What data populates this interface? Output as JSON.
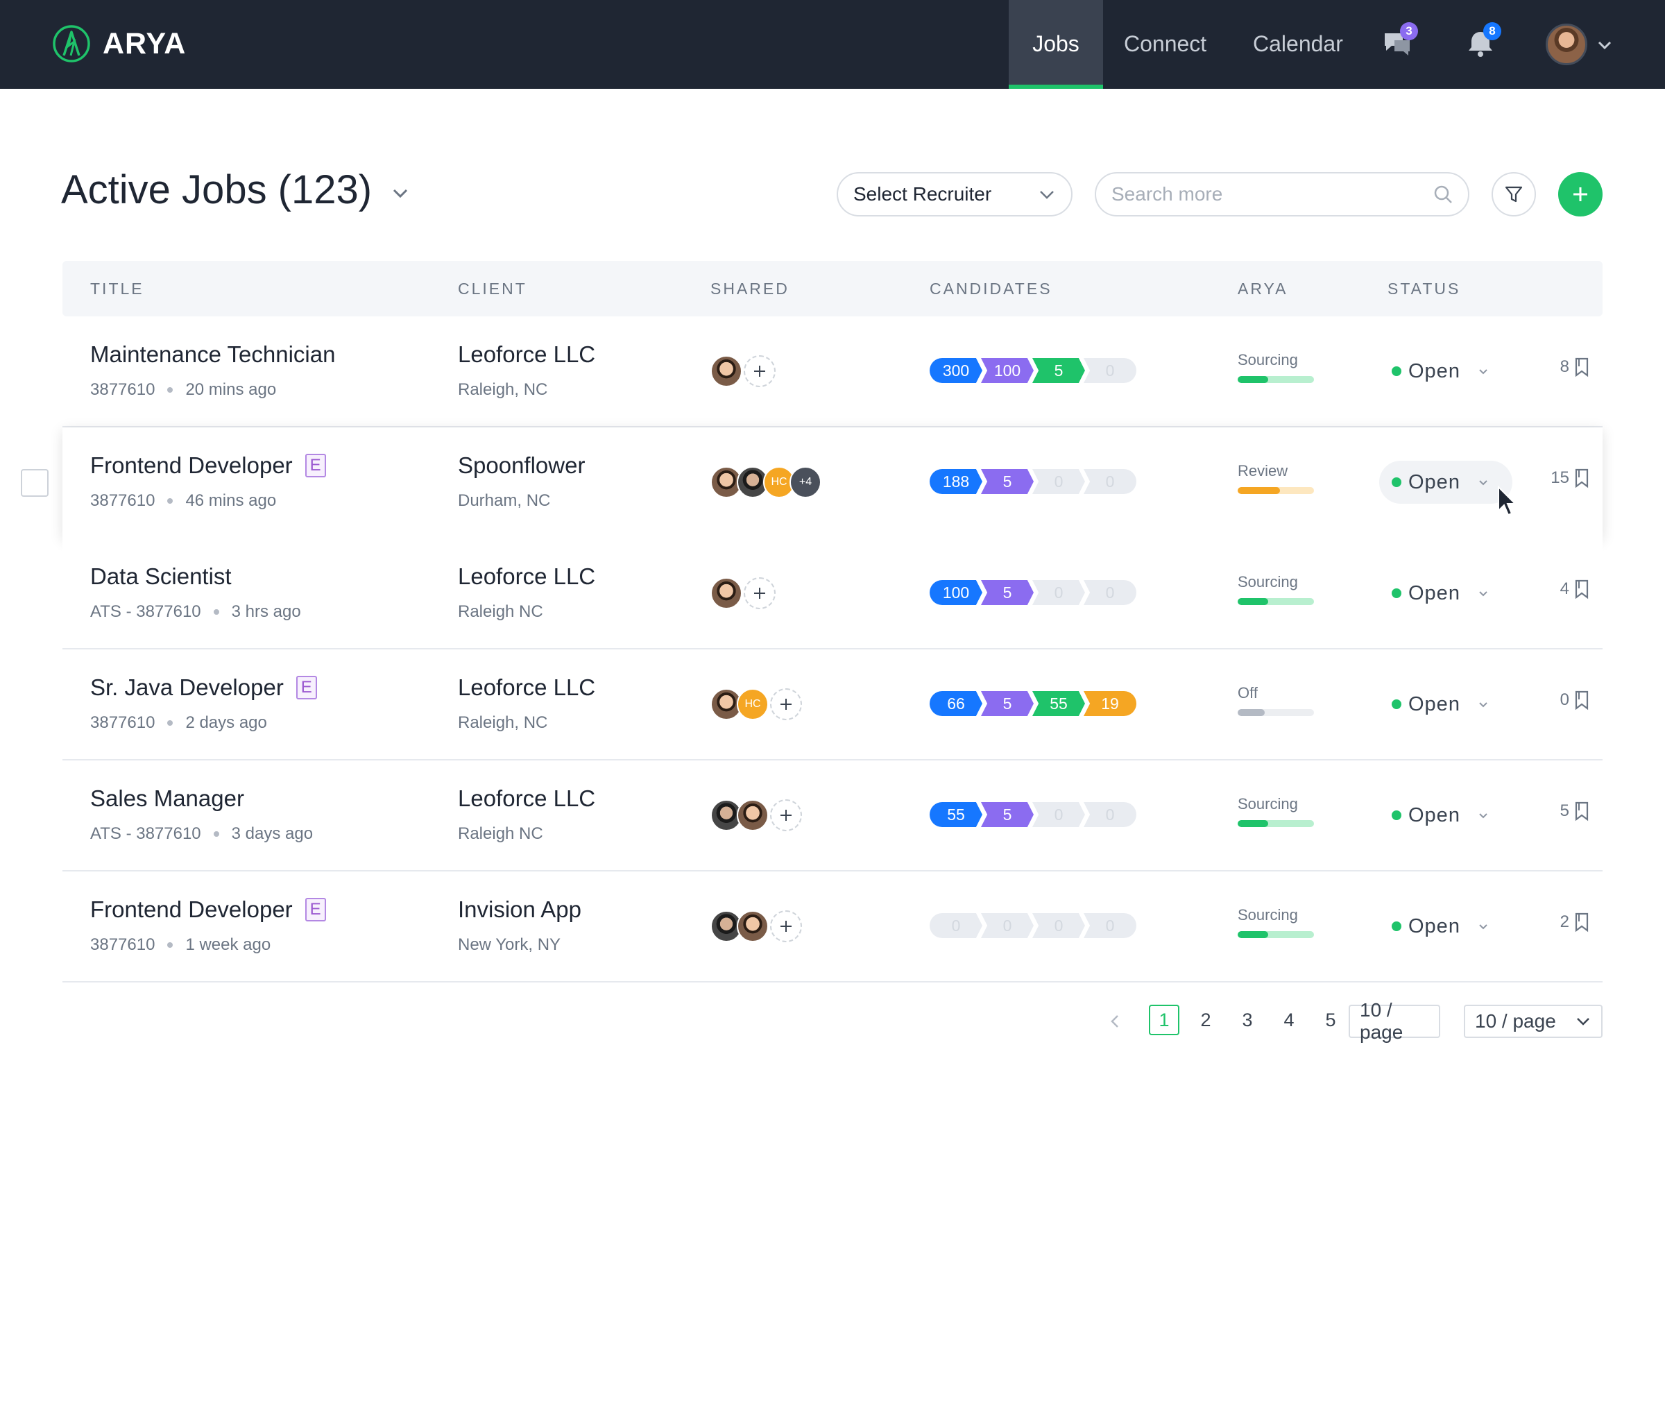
{
  "brand": {
    "name": "ARYA",
    "accent": "#1fc36a"
  },
  "nav": {
    "items": [
      {
        "label": "Jobs",
        "active": true
      },
      {
        "label": "Connect",
        "active": false
      },
      {
        "label": "Calendar",
        "active": false
      }
    ],
    "messages_badge": "3",
    "notifications_badge": "8",
    "messages_icon": "chat-icon",
    "notifications_icon": "bell-icon"
  },
  "header": {
    "title": "Active Jobs (123)",
    "recruiter_select": "Select Recruiter",
    "search_placeholder": "Search more"
  },
  "table": {
    "columns": [
      "TITLE",
      "CLIENT",
      "SHARED",
      "CANDIDATES",
      "ARYA",
      "STATUS"
    ],
    "rows": [
      {
        "title": "Maintenance Technician",
        "e": false,
        "id": "3877610",
        "time": "20 mins ago",
        "client": "Leoforce LLC",
        "location": "Raleigh, NC",
        "candidates": [
          "300",
          "100",
          "5",
          "0"
        ],
        "arya": "Sourcing",
        "arya_level": 0.4,
        "arya_color": "#1fc36a",
        "arya_track": "#b8efcf",
        "status": "Open",
        "bookmarks": "8"
      },
      {
        "title": "Frontend Developer",
        "e": true,
        "id": "3877610",
        "time": "46 mins ago",
        "client": "Spoonflower",
        "location": "Durham, NC",
        "candidates": [
          "188",
          "5",
          "0",
          "0"
        ],
        "arya": "Review",
        "arya_level": 0.55,
        "arya_color": "#f5a623",
        "arya_track": "#fde7bf",
        "status": "Open",
        "bookmarks": "15"
      },
      {
        "title": "Data Scientist",
        "e": false,
        "id": "ATS - 3877610",
        "time": "3 hrs ago",
        "client": "Leoforce LLC",
        "location": "Raleigh NC",
        "candidates": [
          "100",
          "5",
          "0",
          "0"
        ],
        "arya": "Sourcing",
        "arya_level": 0.4,
        "arya_color": "#1fc36a",
        "arya_track": "#b8efcf",
        "status": "Open",
        "bookmarks": "4"
      },
      {
        "title": "Sr. Java Developer",
        "e": true,
        "id": "3877610",
        "time": "2 days ago",
        "client": "Leoforce LLC",
        "location": "Raleigh, NC",
        "candidates": [
          "66",
          "5",
          "55",
          "19"
        ],
        "arya": "Off",
        "arya_level": 0.35,
        "arya_color": "#b4bac4",
        "arya_track": "#eceef1",
        "status": "Open",
        "bookmarks": "0"
      },
      {
        "title": "Sales Manager",
        "e": false,
        "id": "ATS - 3877610",
        "time": "3 days ago",
        "client": "Leoforce LLC",
        "location": "Raleigh NC",
        "candidates": [
          "55",
          "5",
          "0",
          "0"
        ],
        "arya": "Sourcing",
        "arya_level": 0.4,
        "arya_color": "#1fc36a",
        "arya_track": "#b8efcf",
        "status": "Open",
        "bookmarks": "5"
      },
      {
        "title": "Frontend Developer",
        "e": true,
        "id": "3877610",
        "time": "1 week ago",
        "client": "Invision App",
        "location": "New York, NY",
        "candidates": [
          "0",
          "0",
          "0",
          "0"
        ],
        "arya": "Sourcing",
        "arya_level": 0.4,
        "arya_color": "#1fc36a",
        "arya_track": "#b8efcf",
        "status": "Open",
        "bookmarks": "2"
      }
    ]
  },
  "shared_labels": {
    "hc": "HC",
    "more": "+4",
    "e": "E"
  },
  "pagination": {
    "pages": [
      "1",
      "2",
      "3",
      "4",
      "5"
    ],
    "current": "1",
    "page_size_a": "10 / page",
    "page_size_b": "10 / page"
  }
}
